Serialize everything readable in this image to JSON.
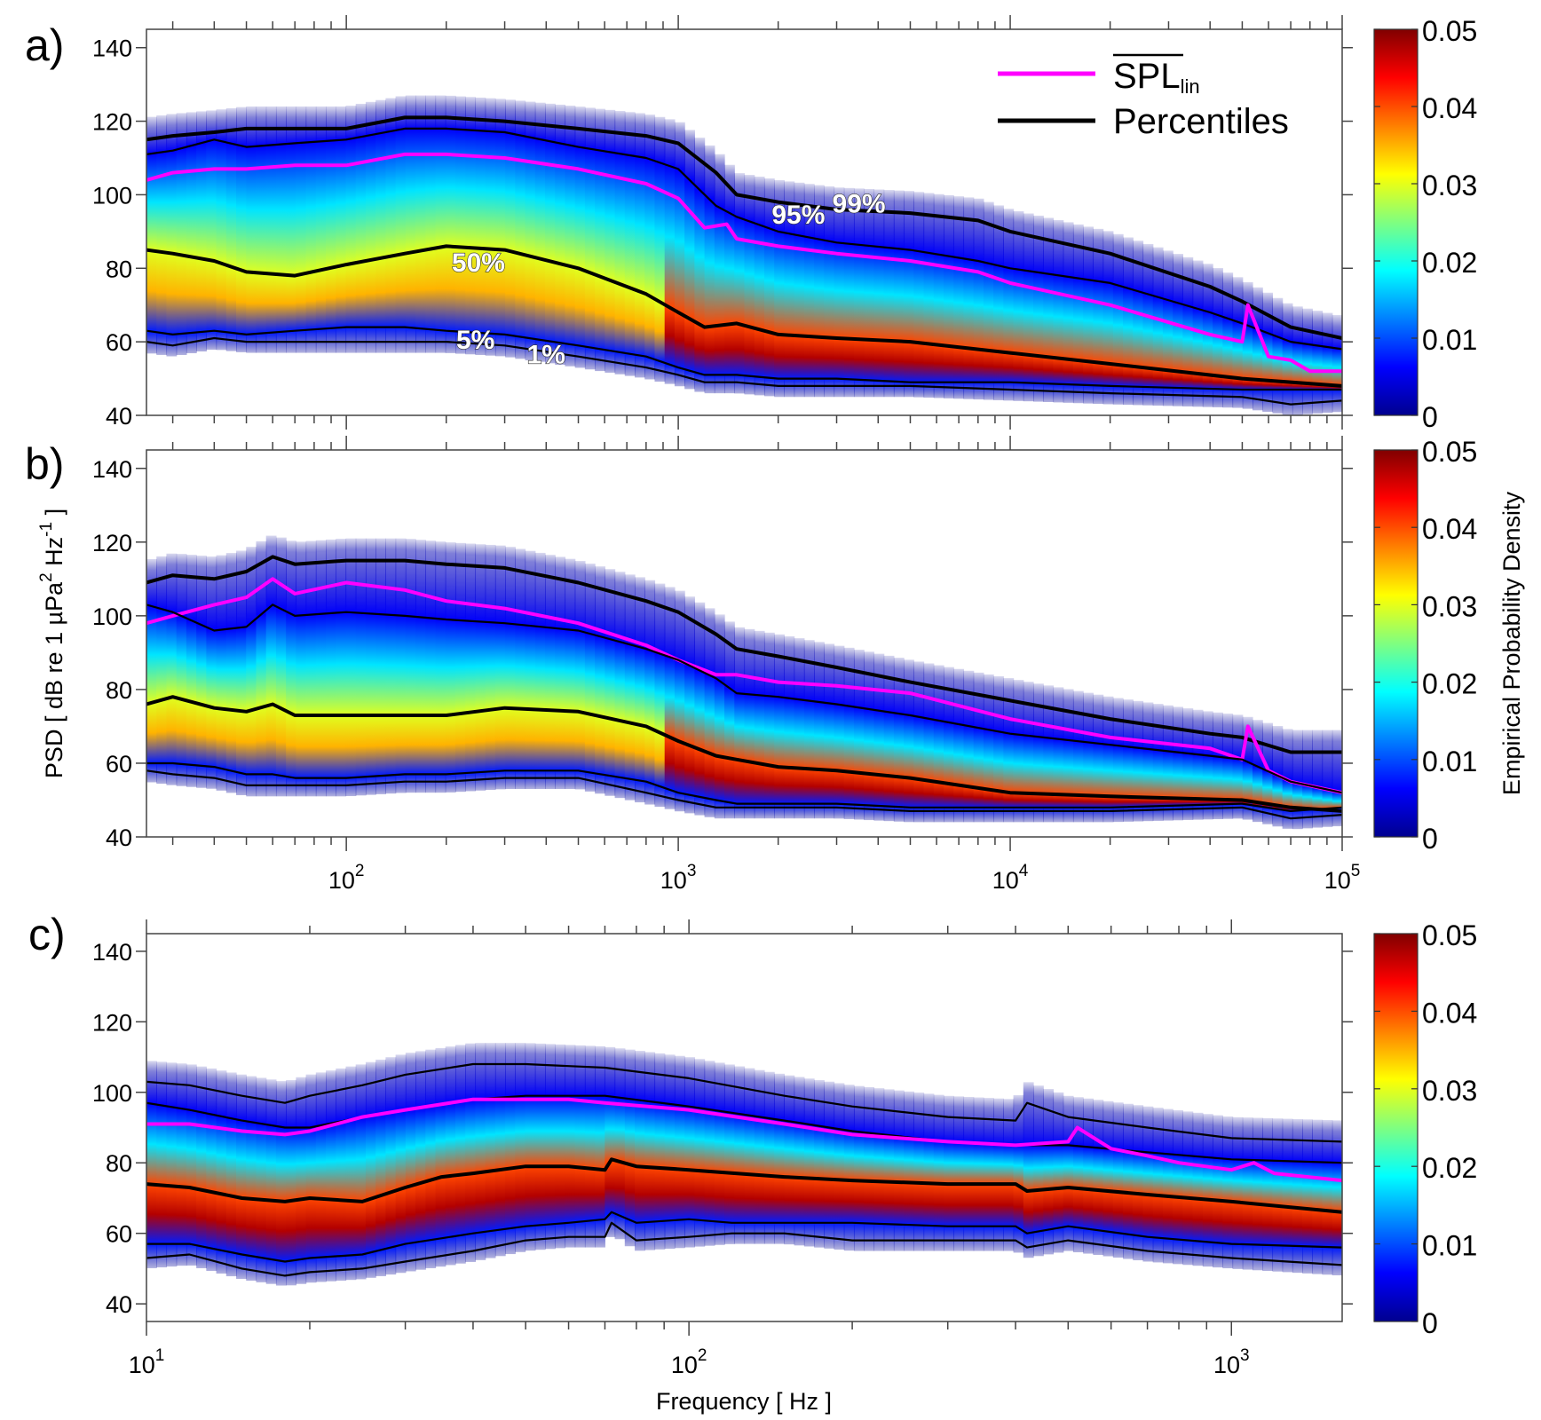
{
  "figure": {
    "ylabel": "PSD [ dB re 1 µPa² Hz⁻¹ ]",
    "ylabel_parts": {
      "prefix": "PSD [ dB re 1 µPa",
      "sup1": "2",
      "mid": " Hz",
      "sup2": "-1",
      "suffix": " ]"
    },
    "xlabel": "Frequency [ Hz ]",
    "colorbar_label": "Empirical Probability Density",
    "colors": {
      "spl": "#ff00ff",
      "percentile": "#000000",
      "axis": "#555555"
    }
  },
  "legend": {
    "spl_label": "SPL",
    "spl_sub": "lin",
    "percentiles_label": "Percentiles"
  },
  "chart_data": [
    {
      "panel": "a)",
      "type": "heatmap",
      "xscale": "log",
      "xlim": [
        25,
        100000
      ],
      "ylim": [
        40,
        145
      ],
      "yticks": [
        40,
        60,
        80,
        100,
        120,
        140
      ],
      "xtick_labels": [],
      "colorbar": {
        "range": [
          0,
          0.05
        ],
        "ticks": [
          "0",
          "0.01",
          "0.02",
          "0.03",
          "0.04",
          "0.05"
        ]
      },
      "legend_position": "top-right",
      "annotations": [
        {
          "text": "99%",
          "x": 3500,
          "y": 98
        },
        {
          "text": "95%",
          "x": 2300,
          "y": 95
        },
        {
          "text": "50%",
          "x": 250,
          "y": 82
        },
        {
          "text": "5%",
          "x": 245,
          "y": 61
        },
        {
          "text": "1%",
          "x": 400,
          "y": 57
        }
      ],
      "series": [
        {
          "name": "99%",
          "x": [
            25,
            30,
            40,
            50,
            70,
            100,
            150,
            200,
            300,
            500,
            800,
            1000,
            1300,
            1500,
            2000,
            3000,
            5000,
            8000,
            10000,
            20000,
            40000,
            50000,
            70000,
            100000
          ],
          "y": [
            115,
            116,
            117,
            118,
            118,
            118,
            121,
            121,
            120,
            118,
            116,
            114,
            106,
            100,
            98,
            96,
            95,
            93,
            90,
            84,
            75,
            71,
            64,
            61
          ]
        },
        {
          "name": "95%",
          "x": [
            25,
            30,
            40,
            50,
            70,
            100,
            150,
            200,
            300,
            500,
            800,
            1000,
            1300,
            1500,
            2000,
            3000,
            5000,
            8000,
            10000,
            20000,
            40000,
            50000,
            70000,
            100000
          ],
          "y": [
            111,
            112,
            115,
            113,
            114,
            115,
            118,
            118,
            117,
            113,
            110,
            107,
            97,
            94,
            90,
            87,
            85,
            82,
            80,
            76,
            68,
            65,
            60,
            58
          ]
        },
        {
          "name": "SPL_lin",
          "x": [
            25,
            30,
            40,
            50,
            70,
            100,
            150,
            200,
            300,
            500,
            800,
            1000,
            1200,
            1400,
            1500,
            2000,
            3000,
            5000,
            8000,
            10000,
            20000,
            40000,
            50000,
            52000,
            60000,
            70000,
            80000,
            100000
          ],
          "y": [
            104,
            106,
            107,
            107,
            108,
            108,
            111,
            111,
            110,
            107,
            103,
            99,
            91,
            92,
            88,
            86,
            84,
            82,
            79,
            76,
            70,
            62,
            60,
            70,
            56,
            55,
            52,
            52
          ]
        },
        {
          "name": "50%",
          "x": [
            25,
            30,
            40,
            50,
            70,
            100,
            150,
            200,
            300,
            500,
            800,
            1000,
            1200,
            1500,
            2000,
            3000,
            5000,
            10000,
            20000,
            50000,
            100000
          ],
          "y": [
            85,
            84,
            82,
            79,
            78,
            81,
            84,
            86,
            85,
            80,
            73,
            68,
            64,
            65,
            62,
            61,
            60,
            57,
            54,
            50,
            48
          ]
        },
        {
          "name": "5%",
          "x": [
            25,
            30,
            40,
            50,
            70,
            100,
            150,
            200,
            300,
            500,
            800,
            1000,
            1200,
            1500,
            2000,
            3000,
            5000,
            10000,
            20000,
            50000,
            100000
          ],
          "y": [
            63,
            62,
            63,
            62,
            63,
            64,
            64,
            63,
            62,
            59,
            56,
            53,
            51,
            51,
            50,
            50,
            49,
            49,
            48,
            47,
            47
          ]
        },
        {
          "name": "1%",
          "x": [
            25,
            30,
            40,
            50,
            70,
            100,
            150,
            200,
            300,
            500,
            800,
            1000,
            1200,
            1500,
            2000,
            3000,
            5000,
            10000,
            20000,
            50000,
            70000,
            100000
          ],
          "y": [
            60,
            59,
            61,
            60,
            60,
            60,
            60,
            60,
            59,
            56,
            53,
            51,
            49,
            49,
            48,
            48,
            48,
            47,
            46,
            45,
            43,
            44
          ]
        }
      ]
    },
    {
      "panel": "b)",
      "type": "heatmap",
      "xscale": "log",
      "xlim": [
        25,
        100000
      ],
      "ylim": [
        40,
        145
      ],
      "yticks": [
        40,
        60,
        80,
        100,
        120,
        140
      ],
      "xtick_labels": [
        {
          "base": "10",
          "exp": "2",
          "value": 100
        },
        {
          "base": "10",
          "exp": "3",
          "value": 1000
        },
        {
          "base": "10",
          "exp": "4",
          "value": 10000
        },
        {
          "base": "10",
          "exp": "5",
          "value": 100000
        }
      ],
      "colorbar": {
        "range": [
          0,
          0.05
        ],
        "ticks": [
          "0",
          "0.01",
          "0.02",
          "0.03",
          "0.04",
          "0.05"
        ]
      },
      "series": [
        {
          "name": "99%",
          "x": [
            25,
            30,
            40,
            50,
            60,
            70,
            100,
            150,
            200,
            300,
            500,
            800,
            1000,
            1300,
            1500,
            2000,
            3000,
            5000,
            10000,
            20000,
            40000,
            50000,
            70000,
            100000
          ],
          "y": [
            109,
            111,
            110,
            112,
            116,
            114,
            115,
            115,
            114,
            113,
            109,
            104,
            101,
            95,
            91,
            89,
            86,
            82,
            77,
            72,
            68,
            67,
            63,
            63
          ]
        },
        {
          "name": "SPL_lin",
          "x": [
            25,
            30,
            40,
            50,
            60,
            70,
            100,
            150,
            200,
            300,
            500,
            800,
            1000,
            1300,
            1500,
            2000,
            3000,
            5000,
            10000,
            20000,
            40000,
            50000,
            52000,
            60000,
            70000,
            100000
          ],
          "y": [
            98,
            100,
            103,
            105,
            110,
            106,
            109,
            107,
            104,
            102,
            98,
            92,
            88,
            84,
            84,
            82,
            81,
            79,
            72,
            67,
            64,
            61,
            70,
            58,
            55,
            52
          ]
        },
        {
          "name": "95%",
          "x": [
            25,
            30,
            40,
            50,
            60,
            70,
            100,
            150,
            200,
            300,
            500,
            800,
            1000,
            1300,
            1500,
            2000,
            3000,
            5000,
            10000,
            20000,
            40000,
            50000,
            70000,
            100000
          ],
          "y": [
            103,
            101,
            96,
            97,
            103,
            100,
            101,
            100,
            99,
            98,
            96,
            91,
            88,
            83,
            79,
            78,
            76,
            73,
            68,
            65,
            62,
            61,
            55,
            52
          ]
        },
        {
          "name": "50%",
          "x": [
            25,
            30,
            40,
            50,
            60,
            70,
            100,
            150,
            200,
            300,
            500,
            800,
            1000,
            1300,
            1500,
            2000,
            3000,
            5000,
            10000,
            20000,
            50000,
            70000,
            100000
          ],
          "y": [
            76,
            78,
            75,
            74,
            76,
            73,
            73,
            73,
            73,
            75,
            74,
            70,
            66,
            62,
            61,
            59,
            58,
            56,
            52,
            51,
            50,
            48,
            47
          ]
        },
        {
          "name": "5%",
          "x": [
            25,
            30,
            40,
            50,
            60,
            70,
            100,
            150,
            200,
            300,
            500,
            800,
            1000,
            1300,
            1500,
            2000,
            3000,
            5000,
            10000,
            20000,
            50000,
            70000,
            100000
          ],
          "y": [
            60,
            60,
            59,
            57,
            57,
            56,
            56,
            57,
            57,
            58,
            58,
            55,
            52,
            50,
            49,
            49,
            49,
            48,
            48,
            48,
            49,
            47,
            48
          ]
        },
        {
          "name": "1%",
          "x": [
            25,
            30,
            40,
            50,
            60,
            70,
            100,
            150,
            200,
            300,
            500,
            800,
            1000,
            1300,
            1500,
            2000,
            3000,
            5000,
            10000,
            20000,
            50000,
            70000,
            100000
          ],
          "y": [
            58,
            57,
            56,
            54,
            54,
            54,
            54,
            55,
            55,
            56,
            56,
            52,
            50,
            48,
            48,
            48,
            48,
            47,
            47,
            47,
            48,
            45,
            46
          ]
        }
      ]
    },
    {
      "panel": "c)",
      "type": "heatmap",
      "xscale": "log",
      "xlim": [
        10,
        1600
      ],
      "ylim": [
        35,
        145
      ],
      "yticks": [
        40,
        60,
        80,
        100,
        120,
        140
      ],
      "xtick_labels": [
        {
          "base": "10",
          "exp": "1",
          "value": 10
        },
        {
          "base": "10",
          "exp": "2",
          "value": 100
        },
        {
          "base": "10",
          "exp": "3",
          "value": 1000
        }
      ],
      "colorbar": {
        "range": [
          0,
          0.05
        ],
        "ticks": [
          "0",
          "0.01",
          "0.02",
          "0.03",
          "0.04",
          "0.05"
        ]
      },
      "series": [
        {
          "name": "99%",
          "x": [
            10,
            12,
            15,
            18,
            20,
            25,
            30,
            40,
            50,
            70,
            100,
            150,
            200,
            300,
            400,
            420,
            500,
            700,
            1000,
            1600
          ],
          "y": [
            103,
            102,
            99,
            97,
            99,
            102,
            105,
            108,
            108,
            107,
            104,
            99,
            96,
            93,
            92,
            97,
            93,
            90,
            87,
            86
          ]
        },
        {
          "name": "95%",
          "x": [
            10,
            12,
            15,
            18,
            20,
            25,
            30,
            40,
            50,
            70,
            100,
            150,
            200,
            300,
            400,
            500,
            700,
            1000,
            1600
          ],
          "y": [
            97,
            95,
            92,
            90,
            90,
            93,
            95,
            98,
            99,
            99,
            96,
            92,
            89,
            86,
            85,
            85,
            83,
            81,
            80
          ]
        },
        {
          "name": "SPL_lin",
          "x": [
            10,
            12,
            15,
            18,
            20,
            25,
            30,
            40,
            50,
            60,
            70,
            100,
            150,
            200,
            300,
            400,
            500,
            520,
            600,
            700,
            800,
            1000,
            1100,
            1200,
            1600
          ],
          "y": [
            91,
            91,
            89,
            88,
            89,
            93,
            95,
            98,
            98,
            98,
            97,
            95,
            91,
            88,
            86,
            85,
            86,
            90,
            84,
            82,
            80,
            78,
            80,
            77,
            75
          ]
        },
        {
          "name": "50%",
          "x": [
            10,
            12,
            15,
            18,
            20,
            25,
            30,
            35,
            40,
            50,
            60,
            70,
            72,
            80,
            100,
            150,
            200,
            300,
            400,
            420,
            500,
            700,
            1000,
            1600
          ],
          "y": [
            74,
            73,
            70,
            69,
            70,
            69,
            73,
            76,
            77,
            79,
            79,
            78,
            81,
            79,
            78,
            76,
            75,
            74,
            74,
            72,
            73,
            71,
            69,
            66
          ]
        },
        {
          "name": "5%",
          "x": [
            10,
            12,
            15,
            18,
            20,
            25,
            30,
            40,
            50,
            60,
            70,
            72,
            80,
            100,
            120,
            150,
            200,
            300,
            400,
            420,
            500,
            700,
            1000,
            1600
          ],
          "y": [
            57,
            57,
            54,
            52,
            53,
            54,
            57,
            60,
            62,
            63,
            64,
            66,
            63,
            64,
            63,
            63,
            63,
            62,
            62,
            60,
            62,
            59,
            57,
            56
          ]
        },
        {
          "name": "1%",
          "x": [
            10,
            12,
            15,
            18,
            20,
            25,
            30,
            40,
            50,
            60,
            70,
            72,
            80,
            100,
            120,
            150,
            200,
            300,
            400,
            420,
            500,
            700,
            1000,
            1600
          ],
          "y": [
            53,
            54,
            50,
            48,
            49,
            50,
            52,
            55,
            58,
            59,
            59,
            63,
            58,
            59,
            60,
            60,
            58,
            58,
            58,
            56,
            58,
            55,
            53,
            51
          ]
        }
      ]
    }
  ]
}
